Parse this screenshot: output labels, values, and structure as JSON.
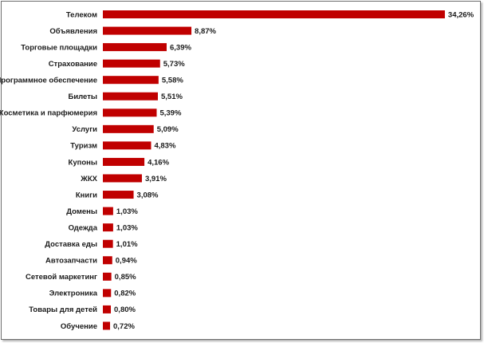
{
  "chart_data": {
    "type": "bar",
    "orientation": "horizontal",
    "title": "",
    "xlabel": "",
    "ylabel": "",
    "bar_color": "#c00000",
    "grid": false,
    "legend": "none",
    "xlim": [
      0,
      35
    ],
    "categories": [
      "Телеком",
      "Объявления",
      "Торговые площадки",
      "Страхование",
      "Программное обеспечение",
      "Билеты",
      "Косметика и парфюмерия",
      "Услуги",
      "Туризм",
      "Купоны",
      "ЖКХ",
      "Книги",
      "Домены",
      "Одежда",
      "Доставка еды",
      "Автозапчасти",
      "Сетевой маркетинг",
      "Электроника",
      "Товары для детей",
      "Обучение"
    ],
    "values": [
      34.26,
      8.87,
      6.39,
      5.73,
      5.58,
      5.51,
      5.39,
      5.09,
      4.83,
      4.16,
      3.91,
      3.08,
      1.03,
      1.03,
      1.01,
      0.94,
      0.85,
      0.82,
      0.8,
      0.72
    ],
    "value_labels": [
      "34,26%",
      "8,87%",
      "6,39%",
      "5,73%",
      "5,58%",
      "5,51%",
      "5,39%",
      "5,09%",
      "4,83%",
      "4,16%",
      "3,91%",
      "3,08%",
      "1,03%",
      "1,03%",
      "1,01%",
      "0,94%",
      "0,85%",
      "0,82%",
      "0,80%",
      "0,72%"
    ]
  }
}
